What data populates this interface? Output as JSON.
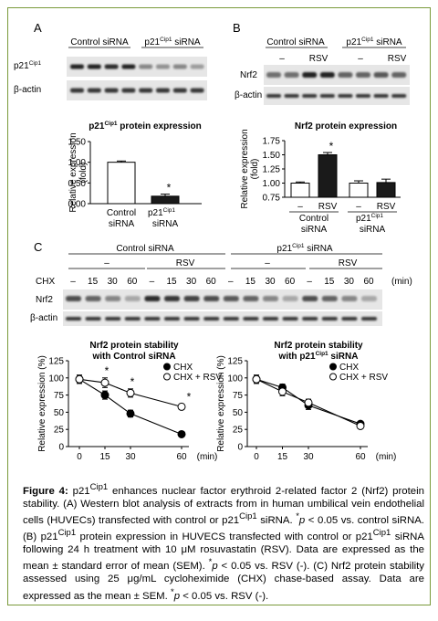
{
  "panel_letters": {
    "a": "A",
    "b": "B",
    "c": "C"
  },
  "panel_a": {
    "blot_headers": {
      "control": "Control siRNA",
      "p21_prefix": "p21",
      "p21_sup": "Cip1",
      "p21_suffix": " siRNA"
    },
    "row_labels": {
      "p21_prefix": "p21",
      "p21_sup": "Cip1",
      "actin": "β-actin"
    },
    "p21_band_intensity": [
      0.9,
      0.9,
      0.85,
      0.9,
      0.45,
      0.4,
      0.45,
      0.35
    ],
    "actin_band_intensity": [
      0.8,
      0.8,
      0.8,
      0.8,
      0.8,
      0.8,
      0.8,
      0.8
    ]
  },
  "panel_b": {
    "blot_headers": {
      "control": "Control siRNA",
      "p21_prefix": "p21",
      "p21_sup": "Cip1",
      "p21_suffix": " siRNA"
    },
    "treatment_labels": [
      "–",
      "RSV",
      "–",
      "RSV"
    ],
    "row_labels": {
      "nrf2": "Nrf2",
      "actin": "β-actin"
    },
    "nrf2_band_intensity": [
      0.55,
      0.55,
      0.9,
      0.9,
      0.6,
      0.6,
      0.65,
      0.6
    ],
    "actin_band_intensity": [
      0.8,
      0.8,
      0.8,
      0.8,
      0.8,
      0.8,
      0.8,
      0.8
    ]
  },
  "panel_c": {
    "group_headers": {
      "control": "Control siRNA",
      "p21_prefix": "p21",
      "p21_sup": "Cip1",
      "p21_suffix": " siRNA"
    },
    "treatment_labels": [
      "–",
      "RSV",
      "–",
      "RSV"
    ],
    "chx_label": "CHX",
    "time_labels": [
      "–",
      "15",
      "30",
      "60",
      "–",
      "15",
      "30",
      "60",
      "–",
      "15",
      "30",
      "60",
      "–",
      "15",
      "30",
      "60"
    ],
    "time_unit": "(min)",
    "row_labels": {
      "nrf2": "Nrf2",
      "actin": "β-actin"
    },
    "nrf2_band_intensity": [
      0.7,
      0.6,
      0.45,
      0.3,
      0.85,
      0.8,
      0.75,
      0.7,
      0.65,
      0.6,
      0.45,
      0.3,
      0.7,
      0.6,
      0.45,
      0.3
    ],
    "actin_band_intensity": [
      0.8,
      0.8,
      0.8,
      0.8,
      0.8,
      0.8,
      0.8,
      0.8,
      0.8,
      0.8,
      0.8,
      0.8,
      0.8,
      0.8,
      0.8,
      0.8
    ]
  },
  "chart_data": [
    {
      "type": "bar",
      "title_prefix": "p21",
      "title_sup": "Cip1",
      "title_suffix": " protein expression",
      "ylabel_line1": "Relative expression",
      "ylabel_line2": "(fold)",
      "ylim": [
        0,
        1.5
      ],
      "yticks": [
        "0.00",
        "0.50",
        "1.00",
        "1.50"
      ],
      "categories": [
        {
          "line1": "Control",
          "line2": "siRNA"
        },
        {
          "line1": "p21",
          "sup": "Cip1",
          "line2": "siRNA"
        }
      ],
      "values": [
        1.0,
        0.18
      ],
      "errors": [
        0.03,
        0.05
      ],
      "fills": [
        "#ffffff",
        "#1a1a1a"
      ],
      "significance": [
        "",
        "*"
      ]
    },
    {
      "type": "bar",
      "title": "Nrf2 protein expression",
      "ylabel_line1": "Relative expression",
      "ylabel_line2": "(fold)",
      "ylim": [
        0.75,
        1.75
      ],
      "yticks": [
        "0.75",
        "1.00",
        "1.25",
        "1.50",
        "1.75"
      ],
      "categories": [
        "–",
        "RSV",
        "–",
        "RSV"
      ],
      "groups": [
        {
          "line1": "Control",
          "line2": "siRNA"
        },
        {
          "line1": "p21",
          "sup": "Cip1",
          "line2": "siRNA"
        }
      ],
      "values": [
        1.0,
        1.5,
        1.0,
        1.01
      ],
      "errors": [
        0.02,
        0.04,
        0.04,
        0.06
      ],
      "fills": [
        "#ffffff",
        "#1a1a1a",
        "#ffffff",
        "#1a1a1a"
      ],
      "significance": [
        "",
        "*",
        "",
        ""
      ]
    },
    {
      "type": "line",
      "title_line1": "Nrf2 protein stability",
      "title_line2": "with Control siRNA",
      "ylabel": "Relative expression (%)",
      "xlabel": "(min)",
      "ylim": [
        0,
        125
      ],
      "yticks": [
        "0",
        "25",
        "50",
        "75",
        "100",
        "125"
      ],
      "xticks": [
        "0",
        "15",
        "30",
        "60"
      ],
      "x": [
        0,
        15,
        30,
        60
      ],
      "series": [
        {
          "name": "CHX",
          "values": [
            98,
            75,
            48,
            18
          ],
          "errors": [
            6,
            6,
            5,
            3
          ],
          "marker": "filled"
        },
        {
          "name": "CHX + RSV",
          "values": [
            98,
            93,
            78,
            58
          ],
          "errors": [
            6,
            7,
            6,
            4
          ],
          "marker": "open"
        }
      ],
      "significance": [
        {
          "x": 15,
          "label": "*"
        },
        {
          "x": 30,
          "label": "*"
        },
        {
          "x": 60,
          "label": "*"
        }
      ]
    },
    {
      "type": "line",
      "title_line1": "Nrf2 protein stability",
      "title_line2_prefix": "with p21",
      "title_line2_sup": "Cip1",
      "title_line2_suffix": " siRNA",
      "ylabel": "Relative expression (%)",
      "xlabel": "(min)",
      "ylim": [
        0,
        125
      ],
      "yticks": [
        "0",
        "25",
        "50",
        "75",
        "100",
        "125"
      ],
      "xticks": [
        "0",
        "15",
        "30",
        "60"
      ],
      "x": [
        0,
        15,
        30,
        60
      ],
      "series": [
        {
          "name": "CHX",
          "values": [
            98,
            86,
            60,
            33
          ],
          "errors": [
            6,
            5,
            6,
            3
          ],
          "marker": "filled"
        },
        {
          "name": "CHX + RSV",
          "values": [
            98,
            80,
            64,
            30
          ],
          "errors": [
            6,
            6,
            5,
            3
          ],
          "marker": "open"
        }
      ]
    }
  ],
  "caption": {
    "label": "Figure 4:",
    "p21": "p21",
    "cip1": "Cip1",
    "t1": " enhances nuclear factor erythroid 2-related factor 2 (Nrf2) protein stability. (A) Western blot analysis of extracts from in human umbilical vein endothelial cells (HUVECs) transfected with control or p21",
    "t2": " siRNA. ",
    "star": "*",
    "p_sym": "p",
    "t3": " < 0.05 vs. control siRNA. (B) p21",
    "t4": " protein expression in HUVECS transfected with control or p21",
    "t5": " siRNA following 24 h treatment with 10 μM rosuvastatin (RSV). Data are expressed as the mean ± standard error of mean (SEM). ",
    "t6": " < 0.05 vs. RSV (-). (C) Nrf2 protein stability assessed using 25 μg/mL cycloheximide (CHX) chase-based assay. Data are expressed as the mean ± SEM. ",
    "t7": " < 0.05 vs. RSV (-)."
  }
}
